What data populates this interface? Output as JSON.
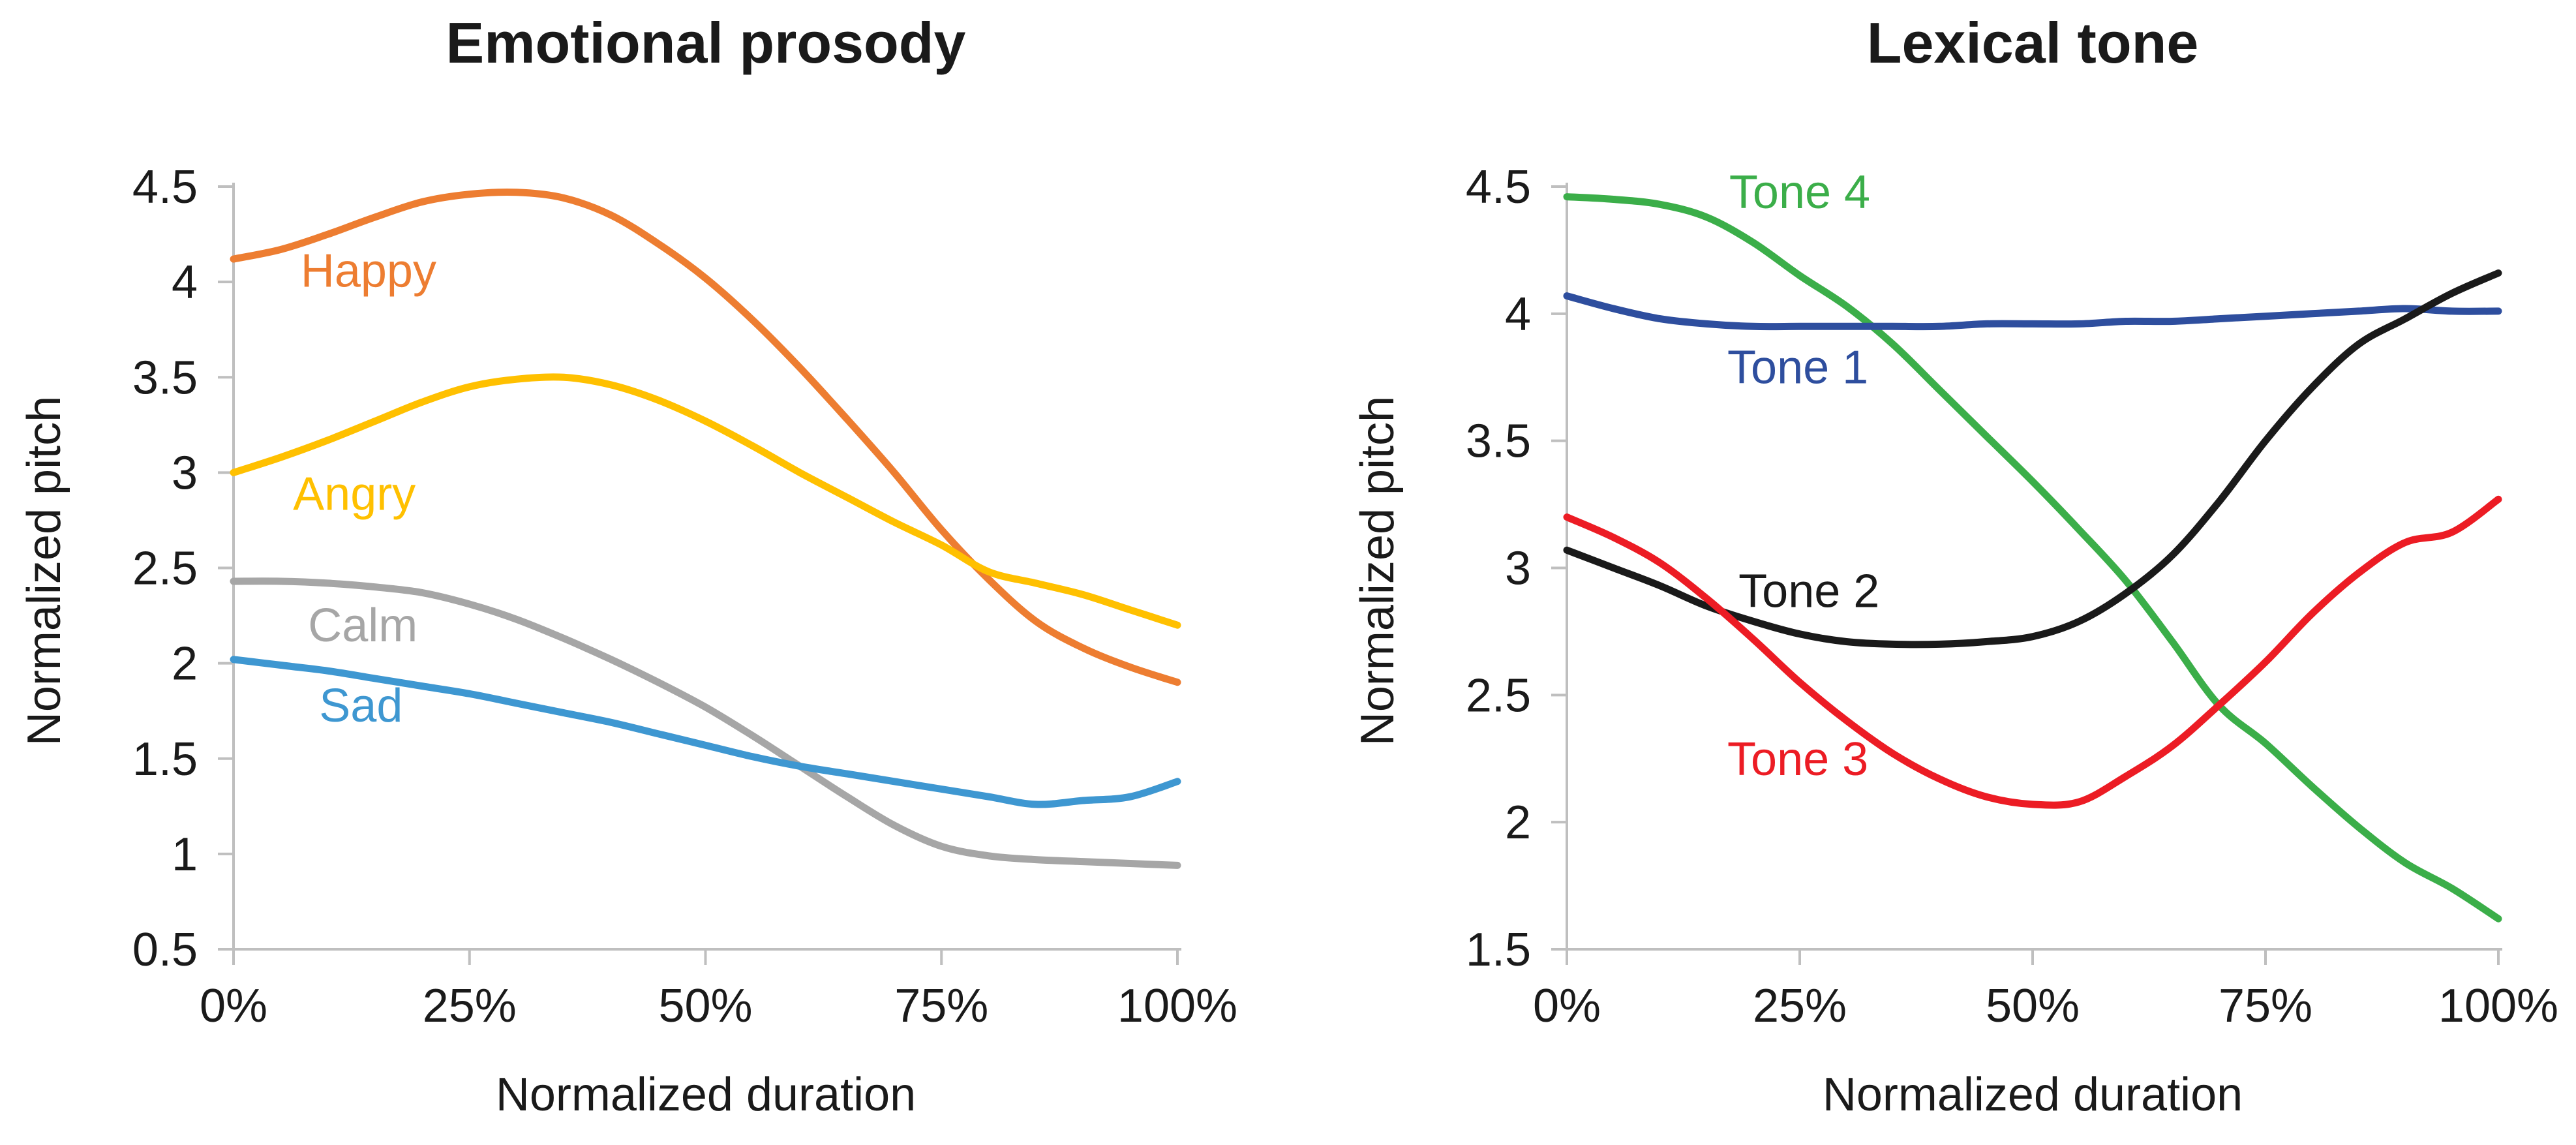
{
  "chart_data": [
    {
      "type": "line",
      "title": "Emotional prosody",
      "xlabel": "Normalized duration",
      "ylabel": "Normalized pitch",
      "x_unit": "percent",
      "x": [
        0,
        5,
        10,
        15,
        20,
        25,
        30,
        35,
        40,
        45,
        50,
        55,
        60,
        65,
        70,
        75,
        80,
        85,
        90,
        95,
        100
      ],
      "x_tick_values": [
        0,
        25,
        50,
        75,
        100
      ],
      "x_tick_labels": [
        "0%",
        "25%",
        "50%",
        "75%",
        "100%"
      ],
      "ylim": [
        0.5,
        4.5
      ],
      "y_tick_values": [
        0.5,
        1,
        1.5,
        2,
        2.5,
        3,
        3.5,
        4,
        4.5
      ],
      "y_tick_labels": [
        "0.5",
        "1",
        "1.5",
        "2",
        "2.5",
        "3",
        "3.5",
        "4",
        "4.5"
      ],
      "grid": false,
      "legend": "inline-labels",
      "series": [
        {
          "name": "Happy",
          "color": "#ED7D31",
          "label_x_pct": 14.3,
          "label_y_val": 4.06,
          "values": [
            4.12,
            4.17,
            4.25,
            4.34,
            4.42,
            4.46,
            4.47,
            4.44,
            4.35,
            4.2,
            4.02,
            3.8,
            3.55,
            3.28,
            3.0,
            2.7,
            2.44,
            2.22,
            2.08,
            1.98,
            1.9
          ]
        },
        {
          "name": "Angry",
          "color": "#FFC000",
          "label_x_pct": 12.8,
          "label_y_val": 2.89,
          "values": [
            3.0,
            3.08,
            3.17,
            3.27,
            3.37,
            3.45,
            3.49,
            3.5,
            3.46,
            3.38,
            3.27,
            3.14,
            3.0,
            2.87,
            2.74,
            2.62,
            2.48,
            2.42,
            2.36,
            2.28,
            2.2
          ]
        },
        {
          "name": "Calm",
          "color": "#A6A6A6",
          "label_x_pct": 13.7,
          "label_y_val": 2.2,
          "values": [
            2.43,
            2.43,
            2.42,
            2.4,
            2.37,
            2.31,
            2.23,
            2.13,
            2.02,
            1.9,
            1.77,
            1.62,
            1.46,
            1.3,
            1.15,
            1.04,
            0.99,
            0.97,
            0.96,
            0.95,
            0.94
          ]
        },
        {
          "name": "Sad",
          "color": "#3E97D1",
          "label_x_pct": 13.5,
          "label_y_val": 1.78,
          "values": [
            2.02,
            1.99,
            1.96,
            1.92,
            1.88,
            1.84,
            1.79,
            1.74,
            1.69,
            1.63,
            1.57,
            1.51,
            1.46,
            1.42,
            1.38,
            1.34,
            1.3,
            1.26,
            1.28,
            1.3,
            1.38
          ]
        }
      ]
    },
    {
      "type": "line",
      "title": "Lexical tone",
      "xlabel": "Normalized duration",
      "ylabel": "Normalized pitch",
      "x_unit": "percent",
      "x": [
        0,
        5,
        10,
        15,
        20,
        25,
        30,
        35,
        40,
        45,
        50,
        55,
        60,
        65,
        70,
        75,
        80,
        85,
        90,
        95,
        100
      ],
      "x_tick_values": [
        0,
        25,
        50,
        75,
        100
      ],
      "x_tick_labels": [
        "0%",
        "25%",
        "50%",
        "75%",
        "100%"
      ],
      "ylim": [
        1.5,
        4.5
      ],
      "y_tick_values": [
        1.5,
        2,
        2.5,
        3,
        3.5,
        4,
        4.5
      ],
      "y_tick_labels": [
        "1.5",
        "2",
        "2.5",
        "3",
        "3.5",
        "4",
        "4.5"
      ],
      "grid": false,
      "legend": "inline-labels",
      "series": [
        {
          "name": "Tone 4",
          "color": "#3BAE49",
          "label_x_pct": 25.0,
          "label_y_val": 4.48,
          "values": [
            4.46,
            4.45,
            4.43,
            4.38,
            4.28,
            4.15,
            4.03,
            3.88,
            3.7,
            3.52,
            3.34,
            3.15,
            2.95,
            2.71,
            2.46,
            2.31,
            2.14,
            1.98,
            1.84,
            1.74,
            1.62
          ]
        },
        {
          "name": "Tone 1",
          "color": "#2E4E9E",
          "label_x_pct": 24.8,
          "label_y_val": 3.79,
          "values": [
            4.07,
            4.02,
            3.98,
            3.96,
            3.95,
            3.95,
            3.95,
            3.95,
            3.95,
            3.96,
            3.96,
            3.96,
            3.97,
            3.97,
            3.98,
            3.99,
            4.0,
            4.01,
            4.02,
            4.01,
            4.01
          ]
        },
        {
          "name": "Tone 2",
          "color": "#1A1A1A",
          "label_x_pct": 26.0,
          "label_y_val": 2.91,
          "values": [
            3.07,
            3.0,
            2.93,
            2.85,
            2.79,
            2.74,
            2.71,
            2.7,
            2.7,
            2.71,
            2.73,
            2.79,
            2.9,
            3.05,
            3.26,
            3.5,
            3.71,
            3.88,
            3.98,
            4.08,
            4.16
          ]
        },
        {
          "name": "Tone 3",
          "color": "#EC1C24",
          "label_x_pct": 24.8,
          "label_y_val": 2.25,
          "values": [
            3.2,
            3.12,
            3.02,
            2.88,
            2.72,
            2.55,
            2.4,
            2.27,
            2.17,
            2.1,
            2.07,
            2.08,
            2.18,
            2.3,
            2.46,
            2.63,
            2.82,
            2.98,
            3.1,
            3.14,
            3.27
          ]
        }
      ]
    }
  ],
  "style": {
    "axis_color": "#BFBFBF",
    "text_color": "#1A1A1A",
    "background": "#FFFFFF"
  }
}
